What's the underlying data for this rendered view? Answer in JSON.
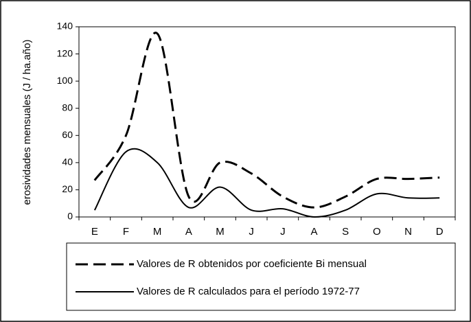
{
  "chart_data": {
    "type": "line",
    "y_label": "erosividades mensuales (J / ha.año)",
    "categories": [
      "E",
      "F",
      "M",
      "A",
      "M",
      "J",
      "J",
      "A",
      "S",
      "O",
      "N",
      "D"
    ],
    "series": [
      {
        "name": "Valores de R obtenidos por coeficiente Bi mensual",
        "color": "#000000",
        "line_style": "dashed",
        "values": [
          27,
          60,
          135,
          15,
          40,
          32,
          15,
          7,
          15,
          28,
          28,
          29
        ]
      },
      {
        "name": "Valores de R calculados para el período 1972-77",
        "color": "#000000",
        "line_style": "solid",
        "values": [
          5,
          48,
          40,
          7,
          22,
          5,
          6,
          0,
          5,
          17,
          14,
          14
        ]
      }
    ],
    "ylim": [
      0,
      140
    ],
    "yticks": [
      0,
      20,
      40,
      60,
      80,
      100,
      120,
      140
    ],
    "smooth": true
  }
}
